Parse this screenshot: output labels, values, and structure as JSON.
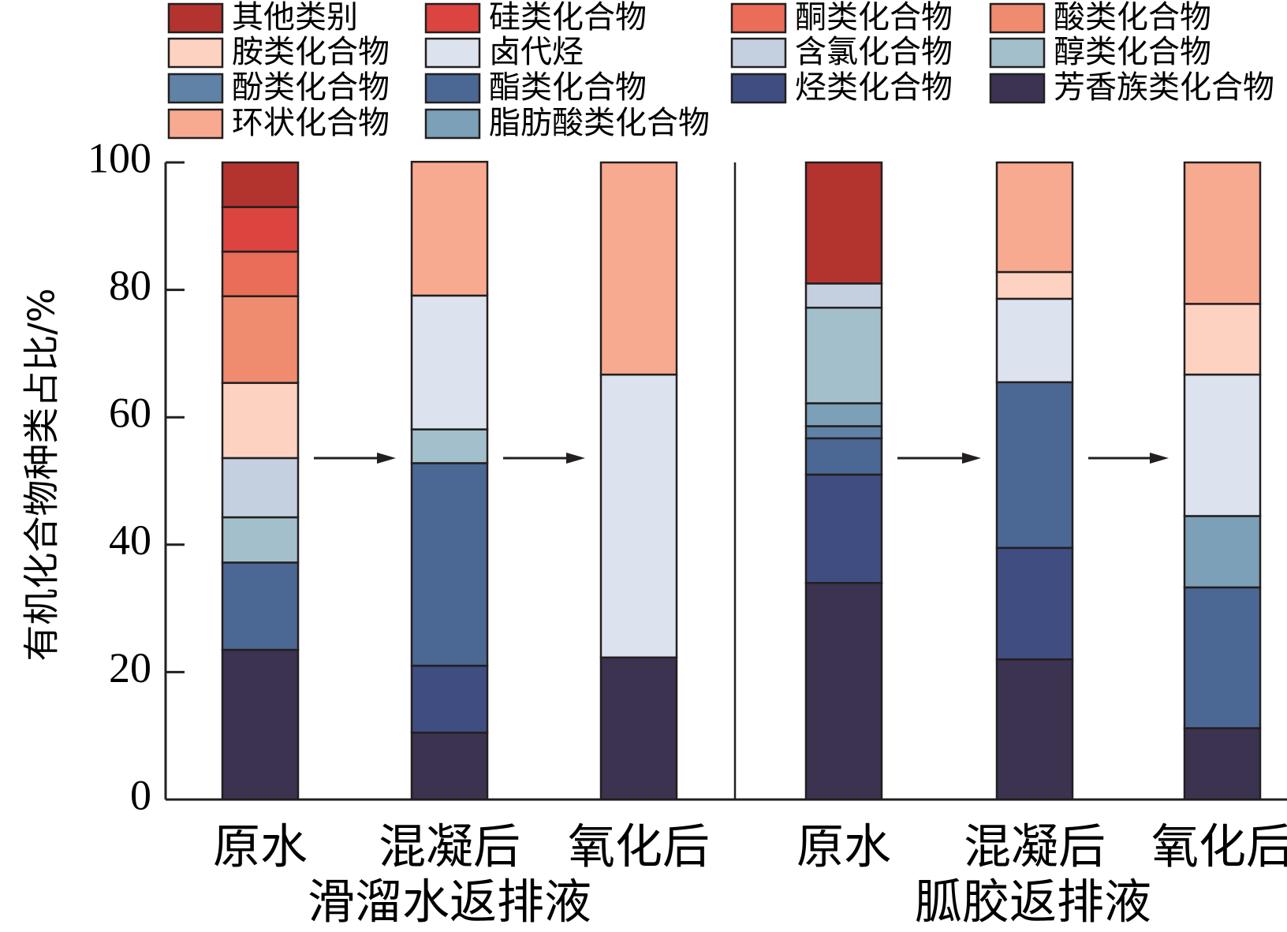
{
  "chart_data": {
    "type": "bar",
    "stacked": true,
    "ylabel": "有机化合物种类占比/%",
    "ylim": [
      0,
      100
    ],
    "yticks": [
      0,
      20,
      40,
      60,
      80,
      100
    ],
    "grid": false,
    "legend_position": "top",
    "categories": [
      "原水",
      "混凝后",
      "氧化后",
      "原水",
      "混凝后",
      "氧化后"
    ],
    "groups": [
      {
        "name": "滑溜水返排液",
        "categories": [
          0,
          1,
          2
        ]
      },
      {
        "name": "胍胶返排液",
        "categories": [
          3,
          4,
          5
        ]
      }
    ],
    "legend_order": [
      "其他类别",
      "硅类化合物",
      "酮类化合物",
      "酸类化合物",
      "胺类化合物",
      "卤代烃",
      "含氯化合物",
      "醇类化合物",
      "酚类化合物",
      "酯类化合物",
      "烃类化合物",
      "芳香族类化合物",
      "环状化合物",
      "脂肪酸类化合物"
    ],
    "series": [
      {
        "name": "芳香族类化合物",
        "color": "#3b3350",
        "values": [
          23.5,
          10.5,
          22.3,
          34.0,
          22.0,
          11.2
        ]
      },
      {
        "name": "烃类化合物",
        "color": "#404d80",
        "values": [
          0,
          10.5,
          0,
          17.0,
          17.5,
          0
        ]
      },
      {
        "name": "酯类化合物",
        "color": "#4b6793",
        "values": [
          13.7,
          31.8,
          0,
          5.7,
          26.0,
          22.1
        ]
      },
      {
        "name": "酚类化合物",
        "color": "#5f82a6",
        "values": [
          0,
          0,
          0,
          1.9,
          0,
          0
        ]
      },
      {
        "name": "脂肪酸类化合物",
        "color": "#7ba0b8",
        "values": [
          0,
          0,
          0,
          3.6,
          0,
          11.2
        ]
      },
      {
        "name": "醇类化合物",
        "color": "#a3bfcb",
        "values": [
          7.1,
          5.3,
          0,
          15.0,
          0,
          0
        ]
      },
      {
        "name": "含氯化合物",
        "color": "#c4cfe0",
        "values": [
          9.3,
          0,
          0,
          3.8,
          0,
          0
        ]
      },
      {
        "name": "卤代烃",
        "color": "#dce3ee",
        "values": [
          0,
          21.0,
          44.4,
          0,
          13.1,
          22.2
        ]
      },
      {
        "name": "胺类化合物",
        "color": "#fdd2c0",
        "values": [
          11.8,
          0,
          0,
          0,
          4.2,
          11.1
        ]
      },
      {
        "name": "环状化合物",
        "color": "#f8aa91",
        "values": [
          0,
          21.0,
          33.3,
          0,
          17.2,
          22.2
        ]
      },
      {
        "name": "酸类化合物",
        "color": "#ef8b6e",
        "values": [
          13.6,
          0,
          0,
          0,
          0,
          0
        ]
      },
      {
        "name": "酮类化合物",
        "color": "#e96d57",
        "values": [
          7.0,
          0,
          0,
          0,
          0,
          0
        ]
      },
      {
        "name": "硅类化合物",
        "color": "#dc4440",
        "values": [
          7.0,
          0,
          0,
          0,
          0,
          0
        ]
      },
      {
        "name": "其他类别",
        "color": "#b3342f",
        "values": [
          7.0,
          0,
          0,
          19.0,
          0,
          0
        ]
      }
    ]
  }
}
